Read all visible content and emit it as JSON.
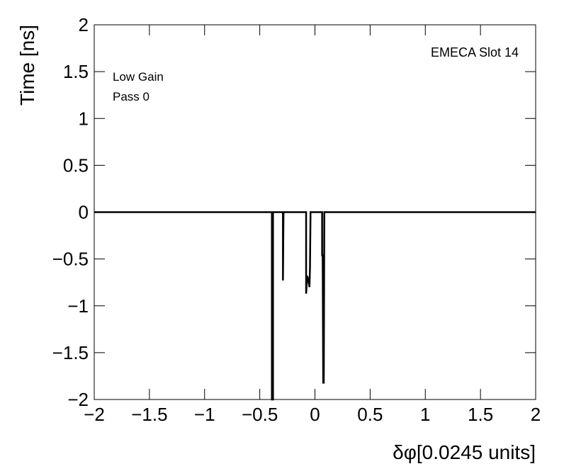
{
  "chart_data": {
    "type": "line",
    "title": "EMECA Slot 14",
    "annotations": [
      "Low Gain",
      "Pass 0"
    ],
    "x_label": "δφ[0.0245 units]",
    "y_label": "Time [ns]",
    "x": [
      -2,
      -0.39,
      -0.39,
      -0.38,
      -0.38,
      -0.29,
      -0.29,
      -0.285,
      -0.08,
      -0.08,
      -0.07,
      -0.06,
      -0.05,
      -0.045,
      -0.04,
      0.065,
      0.065,
      0.07,
      0.075,
      0.08,
      0.085,
      2
    ],
    "series": [
      {
        "color": "#000000",
        "values": [
          0,
          0,
          -2,
          -2,
          0,
          0,
          -0.73,
          0,
          0,
          -0.87,
          -0.68,
          -0.72,
          -0.8,
          -0.6,
          0,
          0,
          -0.46,
          -0.46,
          -1.82,
          -1.82,
          0,
          0
        ]
      }
    ],
    "xlim": [
      -2,
      2
    ],
    "ylim": [
      -2,
      2
    ],
    "xticks": [
      {
        "value": -2,
        "label": "−2"
      },
      {
        "value": -1.5,
        "label": "−1.5"
      },
      {
        "value": -1,
        "label": "−1"
      },
      {
        "value": -0.5,
        "label": "−0.5"
      },
      0,
      0.5,
      1,
      1.5,
      2
    ],
    "yticks": [
      {
        "value": -2,
        "label": "−2"
      },
      {
        "value": -1.5,
        "label": "−1.5"
      },
      {
        "value": -1,
        "label": "−1"
      },
      {
        "value": -0.5,
        "label": "−0.5"
      },
      0,
      0.5,
      1,
      1.5,
      2
    ]
  }
}
